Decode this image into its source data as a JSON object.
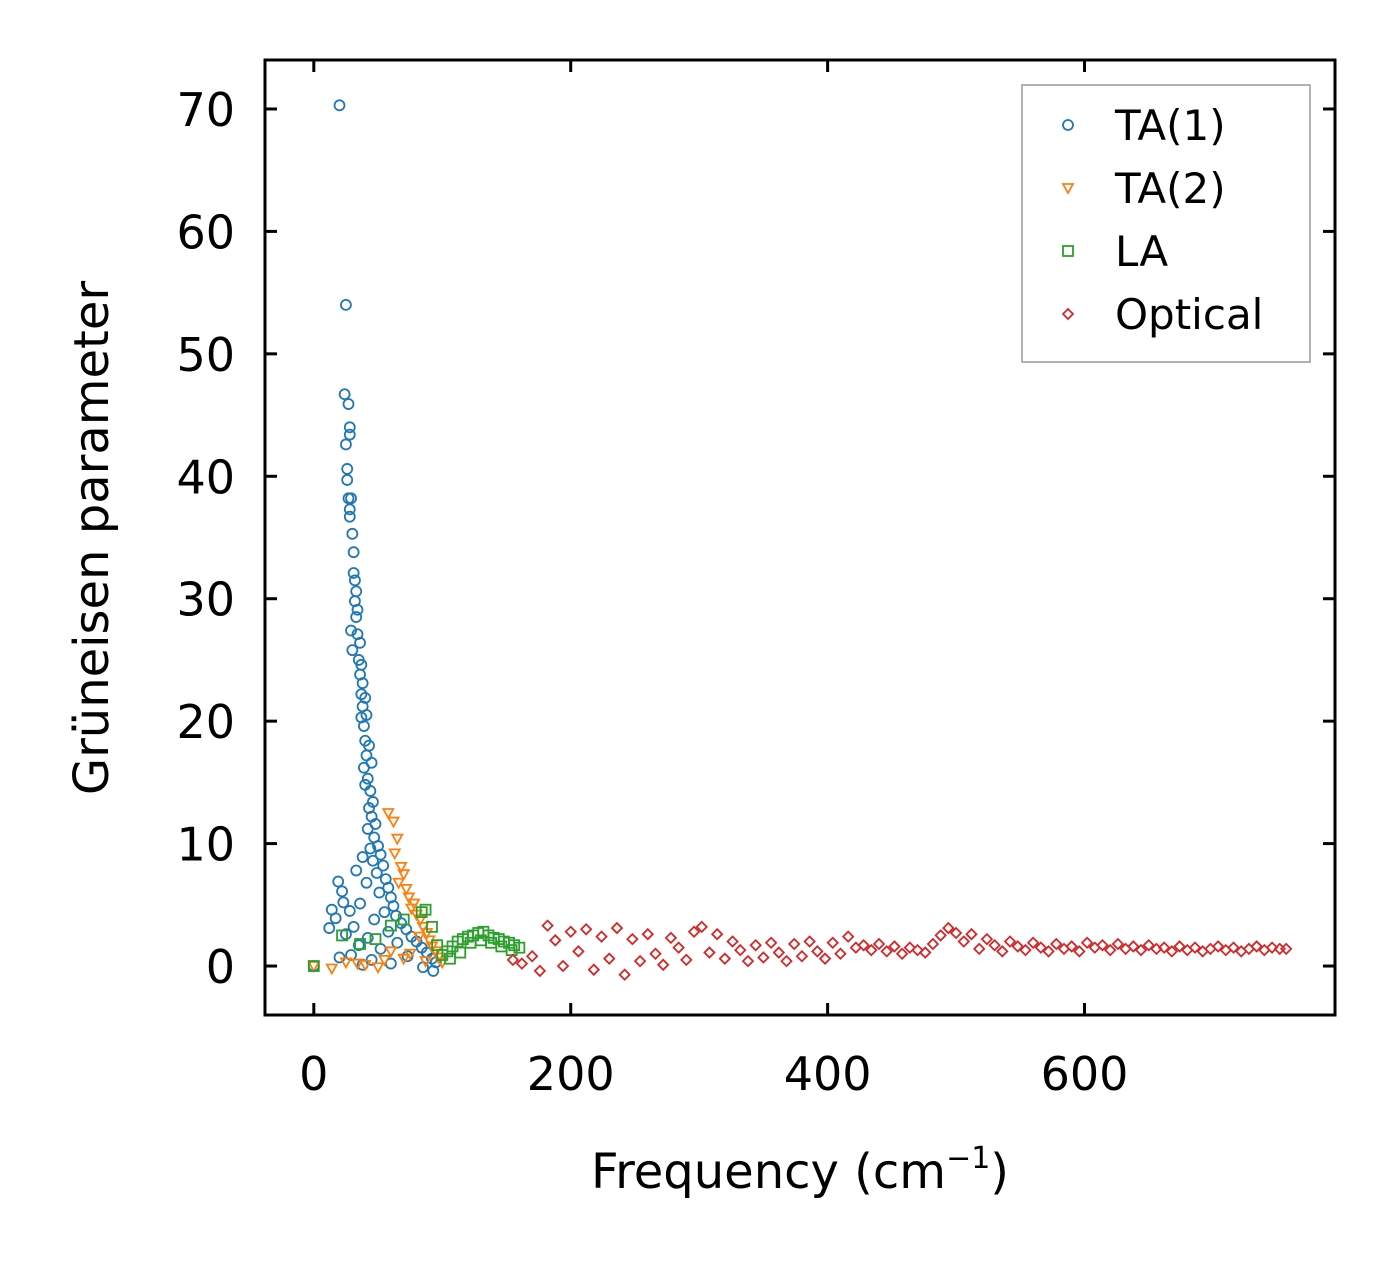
{
  "chart_data": {
    "type": "scatter",
    "title": "",
    "xlabel": "Frequency (cm",
    "xlabel_sup": "−1",
    "xlabel_suffix": ")",
    "ylabel": "Grüneisen parameter",
    "xlim": [
      -38,
      795
    ],
    "ylim": [
      -4,
      74
    ],
    "x_ticks": [
      0,
      200,
      400,
      600
    ],
    "x_tick_labels": [
      "0",
      "200",
      "400",
      "600"
    ],
    "y_ticks": [
      0,
      10,
      20,
      30,
      40,
      50,
      60,
      70
    ],
    "y_tick_labels": [
      "0",
      "10",
      "20",
      "30",
      "40",
      "50",
      "60",
      "70"
    ],
    "legend_position": "top-right",
    "grid": false,
    "series": [
      {
        "name": "TA(1)",
        "marker": "circle",
        "color": "#1f77b4",
        "points": [
          [
            0,
            0
          ],
          [
            20,
            70.3
          ],
          [
            25,
            54
          ],
          [
            24,
            46.7
          ],
          [
            27,
            45.9
          ],
          [
            28,
            44
          ],
          [
            28,
            43.4
          ],
          [
            25,
            42.6
          ],
          [
            26,
            40.6
          ],
          [
            26,
            39.7
          ],
          [
            27,
            38.2
          ],
          [
            29,
            38.2
          ],
          [
            28,
            37.3
          ],
          [
            28,
            36.7
          ],
          [
            30,
            35.3
          ],
          [
            31,
            33.8
          ],
          [
            31,
            32.1
          ],
          [
            32,
            31.5
          ],
          [
            33,
            30.6
          ],
          [
            32,
            29.8
          ],
          [
            34,
            29.1
          ],
          [
            33,
            28.5
          ],
          [
            29,
            27.4
          ],
          [
            34,
            27.1
          ],
          [
            36,
            26.4
          ],
          [
            30,
            25.8
          ],
          [
            35,
            25
          ],
          [
            37,
            24.6
          ],
          [
            36,
            23.8
          ],
          [
            38,
            23.1
          ],
          [
            37,
            22.2
          ],
          [
            40,
            21.9
          ],
          [
            38,
            21.2
          ],
          [
            37,
            20.3
          ],
          [
            41,
            20.5
          ],
          [
            39,
            19.6
          ],
          [
            40,
            18.4
          ],
          [
            43,
            18
          ],
          [
            41,
            17.2
          ],
          [
            45,
            16.6
          ],
          [
            39,
            16.2
          ],
          [
            42,
            15.3
          ],
          [
            40,
            14.8
          ],
          [
            44,
            14.3
          ],
          [
            46,
            13.4
          ],
          [
            43,
            12.9
          ],
          [
            45,
            12.2
          ],
          [
            48,
            11.6
          ],
          [
            42,
            11.2
          ],
          [
            47,
            10.5
          ],
          [
            50,
            9.8
          ],
          [
            44,
            9.6
          ],
          [
            52,
            9.1
          ],
          [
            38,
            8.9
          ],
          [
            46,
            8.6
          ],
          [
            54,
            8.2
          ],
          [
            33,
            7.8
          ],
          [
            49,
            7.6
          ],
          [
            56,
            7.1
          ],
          [
            19,
            6.9
          ],
          [
            41,
            6.8
          ],
          [
            58,
            6.4
          ],
          [
            22,
            6.1
          ],
          [
            51,
            6
          ],
          [
            60,
            5.6
          ],
          [
            23,
            5.2
          ],
          [
            36,
            5.1
          ],
          [
            62,
            4.9
          ],
          [
            14,
            4.6
          ],
          [
            28,
            4.5
          ],
          [
            55,
            4.4
          ],
          [
            64,
            4.1
          ],
          [
            17,
            3.9
          ],
          [
            47,
            3.8
          ],
          [
            68,
            3.5
          ],
          [
            12,
            3.1
          ],
          [
            31,
            3.2
          ],
          [
            72,
            3.0
          ],
          [
            58,
            2.8
          ],
          [
            25,
            2.6
          ],
          [
            76,
            2.4
          ],
          [
            42,
            2.3
          ],
          [
            80,
            2.0
          ],
          [
            65,
            1.9
          ],
          [
            35,
            1.7
          ],
          [
            84,
            1.5
          ],
          [
            52,
            1.4
          ],
          [
            88,
            1.1
          ],
          [
            29,
            0.9
          ],
          [
            73,
            0.8
          ],
          [
            92,
            0.6
          ],
          [
            20,
            0.7
          ],
          [
            45,
            0.5
          ],
          [
            95,
            0.3
          ],
          [
            60,
            0.2
          ],
          [
            38,
            0.1
          ],
          [
            85,
            -0.1
          ],
          [
            93,
            -0.4
          ]
        ]
      },
      {
        "name": "TA(2)",
        "marker": "triangle-down",
        "color": "#ff7f0e",
        "points": [
          [
            0,
            0
          ],
          [
            14,
            -0.2
          ],
          [
            25,
            0.3
          ],
          [
            40,
            0.1
          ],
          [
            55,
            0.5
          ],
          [
            60,
            1.2
          ],
          [
            58,
            12.5
          ],
          [
            62,
            11.8
          ],
          [
            65,
            10.4
          ],
          [
            63,
            9.2
          ],
          [
            68,
            8.1
          ],
          [
            70,
            7.5
          ],
          [
            66,
            6.8
          ],
          [
            72,
            6.3
          ],
          [
            74,
            5.6
          ],
          [
            78,
            5.1
          ],
          [
            76,
            4.7
          ],
          [
            80,
            4.2
          ],
          [
            83,
            3.8
          ],
          [
            85,
            3.2
          ],
          [
            88,
            2.7
          ],
          [
            82,
            2.4
          ],
          [
            90,
            2.1
          ],
          [
            92,
            1.6
          ],
          [
            95,
            1.2
          ],
          [
            75,
            1.0
          ],
          [
            70,
            0.6
          ],
          [
            50,
            -0.1
          ],
          [
            34,
            0.2
          ],
          [
            87,
            0.4
          ],
          [
            97,
            0.7
          ],
          [
            100,
            0.3
          ]
        ]
      },
      {
        "name": "LA",
        "marker": "square",
        "color": "#2ca02c",
        "points": [
          [
            0,
            0
          ],
          [
            22,
            2.5
          ],
          [
            36,
            1.8
          ],
          [
            48,
            2.2
          ],
          [
            60,
            3.3
          ],
          [
            70,
            3.8
          ],
          [
            84,
            4.4
          ],
          [
            87,
            4.6
          ],
          [
            92,
            3.2
          ],
          [
            96,
            1.7
          ],
          [
            100,
            0.9
          ],
          [
            104,
            1.2
          ],
          [
            108,
            1.6
          ],
          [
            112,
            2.0
          ],
          [
            116,
            2.2
          ],
          [
            120,
            2.4
          ],
          [
            124,
            2.5
          ],
          [
            128,
            2.7
          ],
          [
            132,
            2.8
          ],
          [
            136,
            2.5
          ],
          [
            140,
            2.3
          ],
          [
            144,
            2.2
          ],
          [
            148,
            2.0
          ],
          [
            152,
            1.9
          ],
          [
            156,
            1.7
          ],
          [
            160,
            1.5
          ],
          [
            106,
            0.6
          ],
          [
            114,
            1.1
          ],
          [
            122,
            1.9
          ],
          [
            130,
            2.1
          ],
          [
            138,
            1.9
          ],
          [
            146,
            1.6
          ],
          [
            154,
            1.3
          ]
        ]
      },
      {
        "name": "Optical",
        "marker": "diamond",
        "color": "#d62728",
        "points": [
          [
            155,
            0.5
          ],
          [
            162,
            0.2
          ],
          [
            170,
            0.8
          ],
          [
            176,
            -0.4
          ],
          [
            182,
            3.3
          ],
          [
            188,
            2.1
          ],
          [
            194,
            0.0
          ],
          [
            200,
            2.8
          ],
          [
            206,
            1.2
          ],
          [
            212,
            3.0
          ],
          [
            218,
            -0.3
          ],
          [
            224,
            2.4
          ],
          [
            230,
            0.6
          ],
          [
            236,
            3.1
          ],
          [
            242,
            -0.7
          ],
          [
            248,
            2.2
          ],
          [
            254,
            0.4
          ],
          [
            260,
            2.6
          ],
          [
            266,
            1.0
          ],
          [
            272,
            0.1
          ],
          [
            278,
            2.3
          ],
          [
            284,
            1.5
          ],
          [
            290,
            0.5
          ],
          [
            296,
            2.8
          ],
          [
            302,
            3.2
          ],
          [
            308,
            1.1
          ],
          [
            314,
            2.6
          ],
          [
            320,
            0.6
          ],
          [
            326,
            2.0
          ],
          [
            332,
            1.3
          ],
          [
            338,
            0.4
          ],
          [
            344,
            1.7
          ],
          [
            350,
            0.7
          ],
          [
            356,
            1.9
          ],
          [
            362,
            1.1
          ],
          [
            368,
            0.4
          ],
          [
            374,
            1.8
          ],
          [
            380,
            0.8
          ],
          [
            386,
            2.0
          ],
          [
            392,
            1.2
          ],
          [
            398,
            0.6
          ],
          [
            404,
            1.9
          ],
          [
            410,
            1.0
          ],
          [
            416,
            2.4
          ],
          [
            422,
            1.5
          ],
          [
            428,
            1.7
          ],
          [
            434,
            1.3
          ],
          [
            440,
            1.8
          ],
          [
            446,
            1.2
          ],
          [
            452,
            1.6
          ],
          [
            458,
            1.0
          ],
          [
            464,
            1.5
          ],
          [
            470,
            1.3
          ],
          [
            476,
            1.1
          ],
          [
            482,
            1.8
          ],
          [
            488,
            2.5
          ],
          [
            494,
            3.1
          ],
          [
            500,
            2.7
          ],
          [
            506,
            2.0
          ],
          [
            512,
            2.6
          ],
          [
            518,
            1.4
          ],
          [
            524,
            2.2
          ],
          [
            530,
            1.7
          ],
          [
            536,
            1.2
          ],
          [
            542,
            2.0
          ],
          [
            548,
            1.6
          ],
          [
            554,
            1.3
          ],
          [
            560,
            1.9
          ],
          [
            566,
            1.5
          ],
          [
            572,
            1.2
          ],
          [
            578,
            1.8
          ],
          [
            584,
            1.4
          ],
          [
            590,
            1.6
          ],
          [
            596,
            1.2
          ],
          [
            602,
            1.9
          ],
          [
            608,
            1.5
          ],
          [
            614,
            1.7
          ],
          [
            620,
            1.3
          ],
          [
            626,
            1.8
          ],
          [
            632,
            1.4
          ],
          [
            638,
            1.6
          ],
          [
            644,
            1.3
          ],
          [
            650,
            1.7
          ],
          [
            656,
            1.4
          ],
          [
            662,
            1.5
          ],
          [
            668,
            1.2
          ],
          [
            674,
            1.6
          ],
          [
            680,
            1.3
          ],
          [
            686,
            1.5
          ],
          [
            692,
            1.2
          ],
          [
            698,
            1.4
          ],
          [
            704,
            1.6
          ],
          [
            710,
            1.3
          ],
          [
            716,
            1.5
          ],
          [
            722,
            1.2
          ],
          [
            728,
            1.4
          ],
          [
            734,
            1.6
          ],
          [
            740,
            1.3
          ],
          [
            746,
            1.5
          ],
          [
            752,
            1.4
          ],
          [
            757,
            1.4
          ]
        ]
      }
    ]
  }
}
